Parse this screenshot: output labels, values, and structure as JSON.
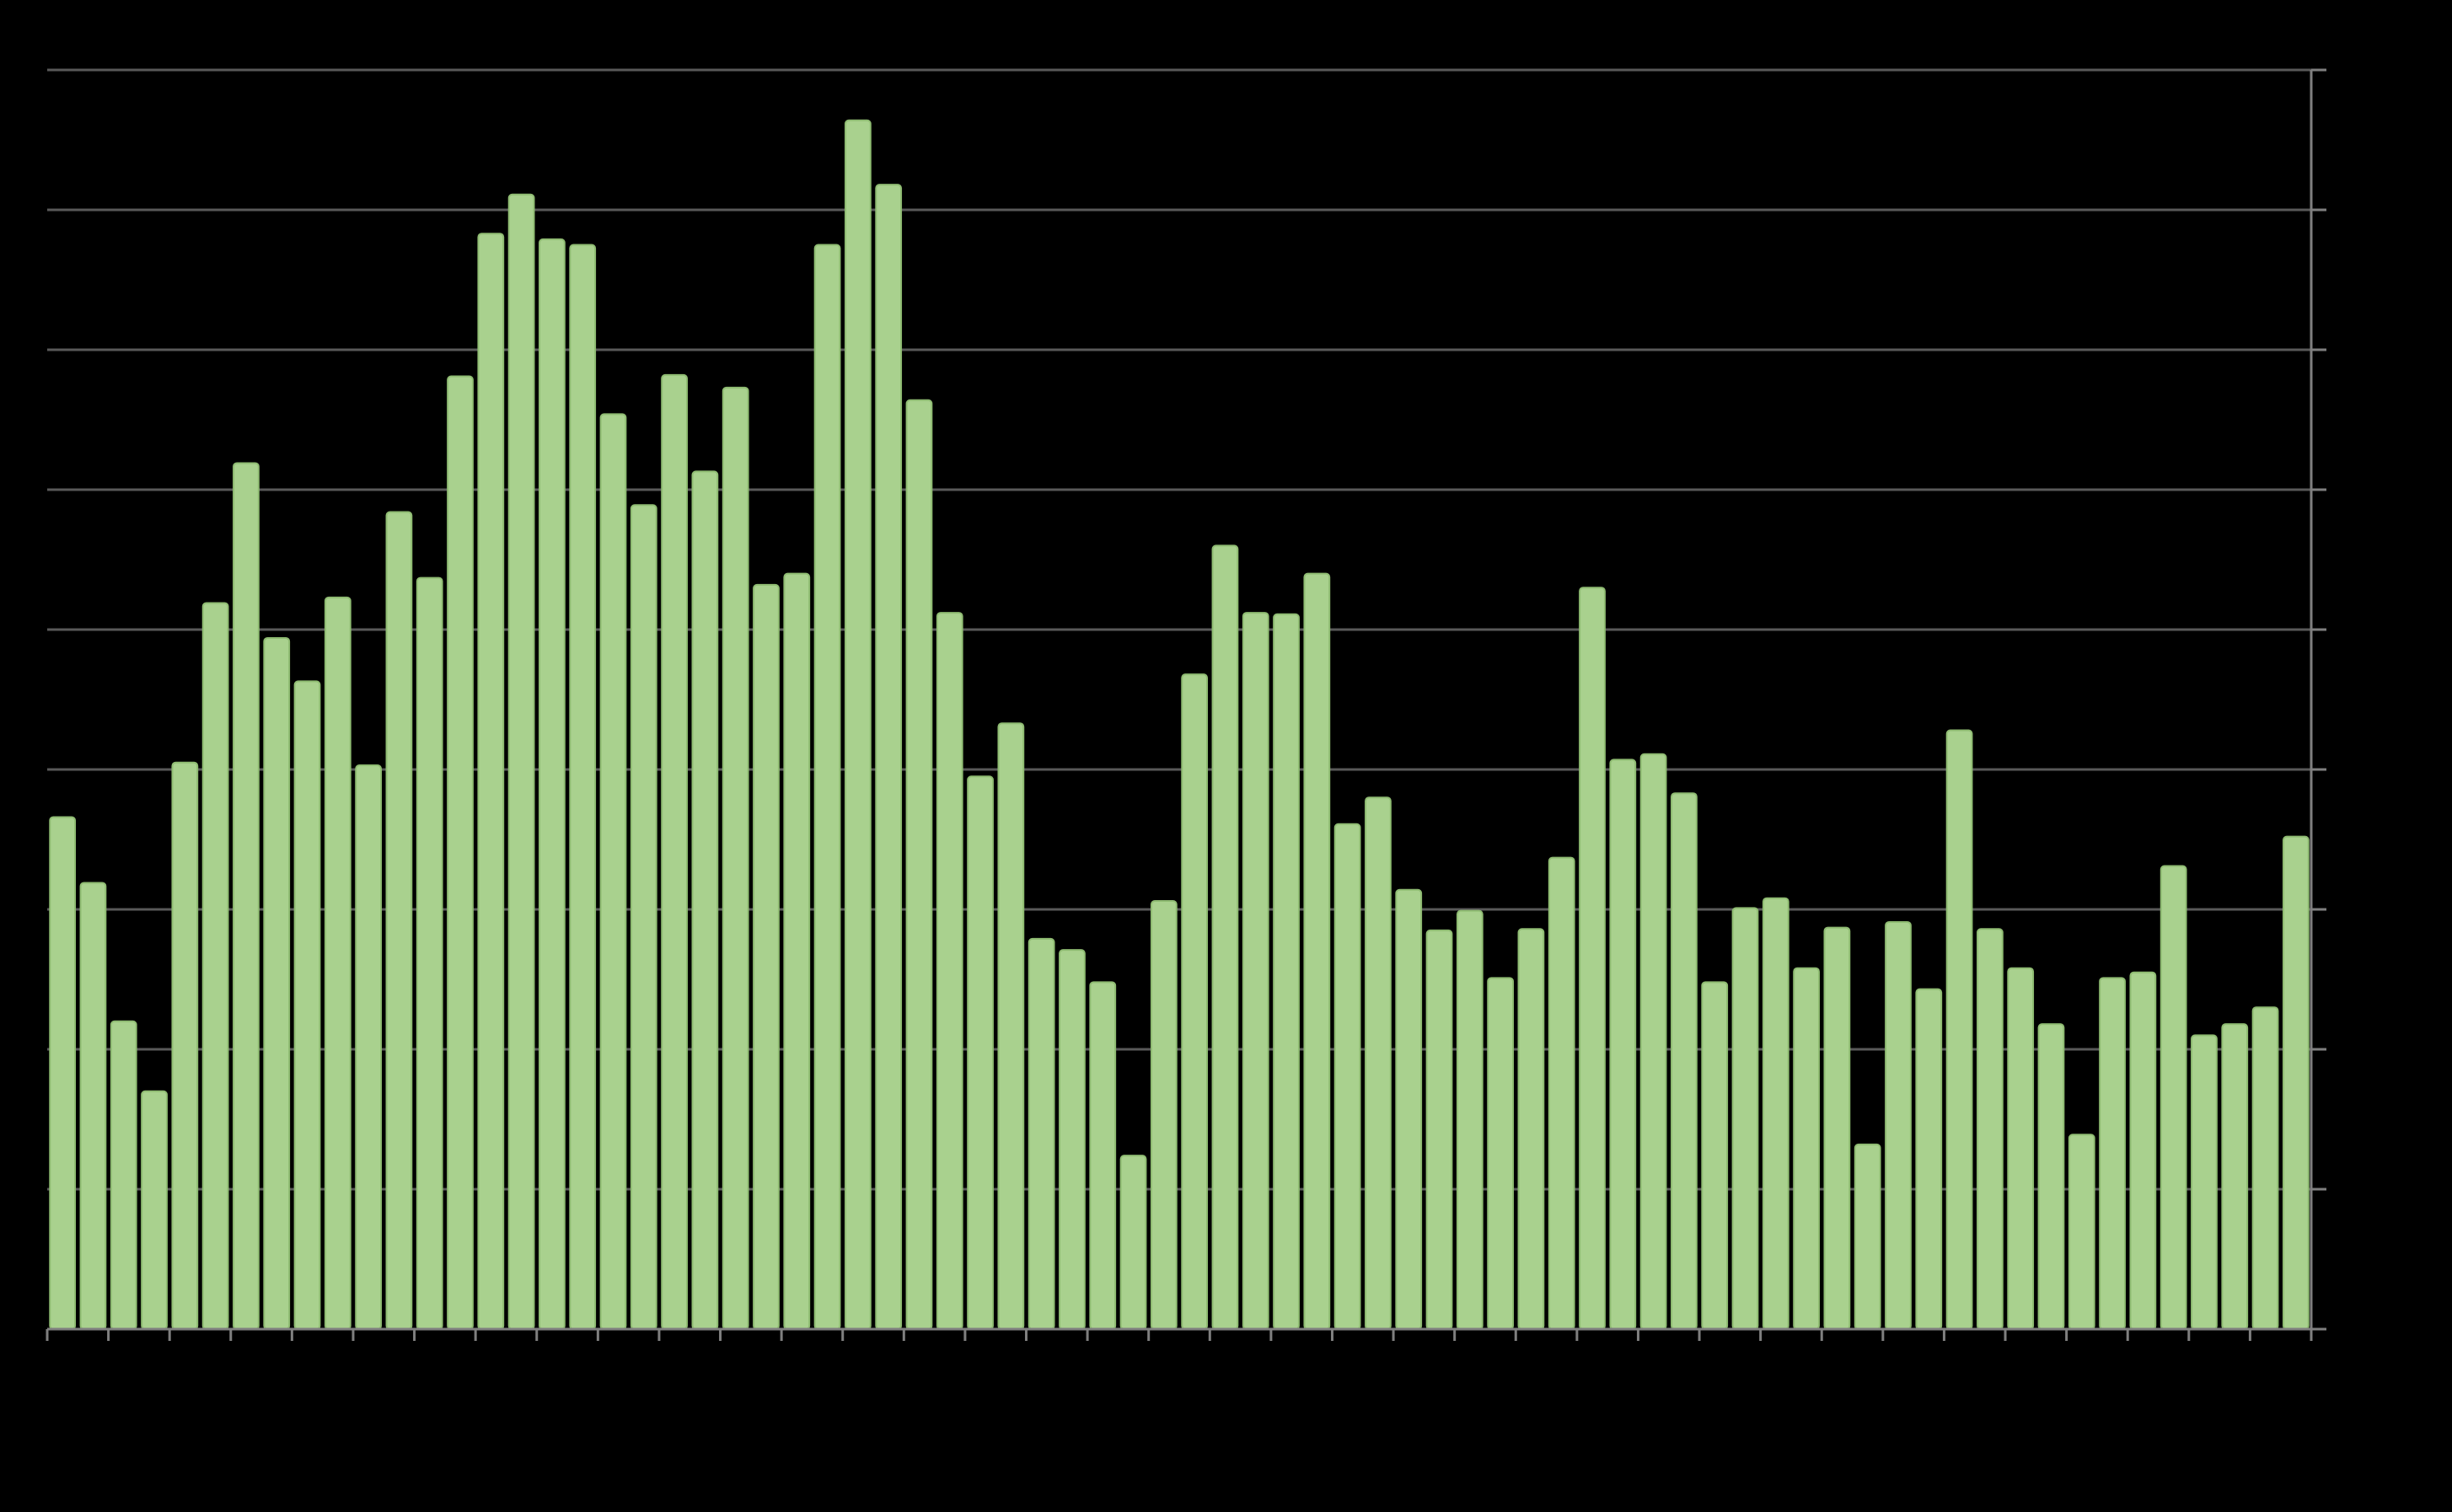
{
  "chart_data": {
    "type": "bar",
    "categories": [
      null,
      null,
      null,
      null,
      null,
      null,
      null,
      null,
      null,
      null,
      null,
      null,
      null,
      null,
      null,
      null,
      null,
      null,
      null,
      null,
      null,
      null,
      null,
      null,
      null,
      null,
      null,
      null,
      null,
      null,
      null,
      null,
      null,
      null,
      null,
      null,
      null,
      null,
      null,
      null,
      null,
      null,
      null,
      null,
      null,
      null,
      null,
      null,
      null,
      null,
      null,
      null,
      null,
      null,
      null,
      null,
      null,
      null,
      null,
      null,
      null,
      null,
      null,
      null,
      null,
      null,
      null,
      null,
      null,
      null,
      null,
      null,
      null,
      null
    ],
    "values": [
      3.66,
      3.19,
      2.2,
      1.7,
      4.05,
      5.19,
      6.19,
      4.94,
      4.63,
      5.23,
      4.03,
      5.84,
      5.37,
      6.81,
      7.83,
      8.11,
      7.79,
      7.75,
      6.54,
      5.89,
      6.82,
      6.13,
      6.73,
      5.32,
      5.4,
      7.75,
      8.64,
      8.18,
      6.64,
      5.12,
      3.95,
      4.33,
      2.79,
      2.71,
      2.48,
      1.24,
      3.06,
      4.68,
      5.6,
      5.12,
      5.11,
      5.4,
      3.61,
      3.8,
      3.14,
      2.85,
      2.99,
      2.51,
      2.86,
      3.37,
      5.3,
      4.07,
      4.11,
      3.83,
      2.48,
      3.01,
      3.08,
      2.58,
      2.87,
      1.32,
      2.91,
      2.43,
      4.28,
      2.86,
      2.58,
      2.18,
      1.39,
      2.51,
      2.55,
      3.31,
      2.1,
      2.18,
      2.3,
      3.52
    ],
    "color": "#a9d18e",
    "ylim": [
      0,
      9
    ],
    "yticks": [
      0,
      1,
      2,
      3,
      4,
      5,
      6,
      7,
      8,
      9
    ],
    "grid": true
  }
}
